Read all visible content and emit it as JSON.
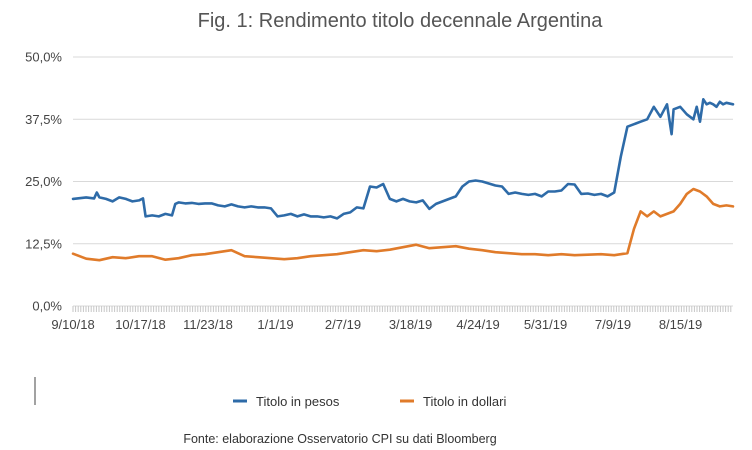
{
  "chart_data": {
    "type": "line",
    "title": "Fig. 1: Rendimento titolo decennale Argentina",
    "xlabel": "",
    "ylabel": "",
    "ylim": [
      0,
      50
    ],
    "y_ticks": [
      "0,0%",
      "12,5%",
      "25,0%",
      "37,5%",
      "50,0%"
    ],
    "y_tick_values": [
      0,
      12.5,
      25,
      37.5,
      50
    ],
    "x_tick_labels": [
      "9/10/18",
      "10/17/18",
      "11/23/18",
      "1/1/19",
      "2/7/19",
      "3/18/19",
      "4/24/19",
      "5/31/19",
      "7/9/19",
      "8/15/19"
    ],
    "x_range": [
      0,
      100
    ],
    "series": [
      {
        "name": "Titolo in pesos",
        "color": "#2e6ba8",
        "x": [
          0,
          2,
          3.2,
          3.6,
          4,
          5,
          6,
          7,
          8,
          9,
          10,
          10.6,
          11,
          12,
          13,
          14,
          15,
          15.5,
          16,
          17,
          18,
          19,
          20,
          21,
          22,
          23,
          24,
          25,
          26,
          27,
          28,
          29,
          30,
          31,
          32,
          33,
          34,
          35,
          36,
          37,
          38,
          39,
          40,
          41,
          42,
          43,
          44,
          45,
          46,
          47,
          48,
          49,
          50,
          51,
          52,
          53,
          54,
          55,
          56,
          57,
          58,
          59,
          60,
          61,
          62,
          63,
          64,
          65,
          66,
          67,
          68,
          69,
          70,
          71,
          72,
          73,
          74,
          75,
          76,
          77,
          78,
          79,
          80,
          81,
          82,
          83,
          84,
          85,
          86,
          87,
          88,
          89,
          90,
          90.7,
          91,
          92,
          93,
          94,
          94.5,
          95,
          95.5,
          96,
          96.5,
          97,
          97.5,
          98,
          98.5,
          99,
          100
        ],
        "values": [
          21.5,
          21.8,
          21.6,
          22.8,
          21.8,
          21.5,
          21.0,
          21.8,
          21.5,
          21.0,
          21.2,
          21.6,
          18.0,
          18.2,
          18.0,
          18.5,
          18.2,
          20.5,
          20.8,
          20.6,
          20.7,
          20.5,
          20.6,
          20.6,
          20.2,
          20.0,
          20.4,
          20.0,
          19.8,
          20.0,
          19.8,
          19.8,
          19.6,
          18.0,
          18.2,
          18.5,
          18.0,
          18.4,
          18.0,
          18.0,
          17.8,
          18.0,
          17.6,
          18.5,
          18.8,
          19.8,
          19.6,
          24.0,
          23.8,
          24.5,
          21.5,
          21.0,
          21.5,
          21.0,
          20.8,
          21.2,
          19.5,
          20.5,
          21.0,
          21.5,
          22.0,
          24.0,
          25.0,
          25.2,
          25.0,
          24.6,
          24.2,
          24.0,
          22.5,
          22.8,
          22.5,
          22.3,
          22.5,
          22.0,
          23.0,
          23.0,
          23.2,
          24.5,
          24.4,
          22.5,
          22.6,
          22.3,
          22.5,
          22.0,
          22.8,
          30.0,
          36.0,
          36.5,
          37.0,
          37.5,
          40.0,
          38.0,
          40.5,
          34.5,
          39.5,
          40.0,
          38.5,
          37.5,
          40.0,
          37.0,
          41.5,
          40.5,
          40.8,
          40.5,
          40.0,
          41.0,
          40.5,
          40.8,
          40.5
        ],
        "values_note": "approximate, read from gridlines"
      },
      {
        "name": "Titolo in dollari",
        "color": "#e07b2a",
        "x": [
          0,
          2,
          4,
          6,
          8,
          10,
          12,
          14,
          16,
          18,
          20,
          22,
          24,
          26,
          28,
          30,
          32,
          34,
          36,
          38,
          40,
          42,
          44,
          46,
          48,
          50,
          52,
          54,
          56,
          58,
          60,
          62,
          64,
          66,
          68,
          70,
          72,
          74,
          76,
          78,
          80,
          82,
          84,
          85,
          86,
          87,
          88,
          89,
          90,
          91,
          92,
          93,
          94,
          95,
          96,
          97,
          98,
          99,
          100
        ],
        "values": [
          10.5,
          9.5,
          9.2,
          9.8,
          9.6,
          10.0,
          10.0,
          9.3,
          9.6,
          10.2,
          10.4,
          10.8,
          11.2,
          10.0,
          9.8,
          9.6,
          9.4,
          9.6,
          10.0,
          10.2,
          10.4,
          10.8,
          11.2,
          11.0,
          11.3,
          11.8,
          12.3,
          11.6,
          11.8,
          12.0,
          11.5,
          11.2,
          10.8,
          10.6,
          10.4,
          10.4,
          10.2,
          10.4,
          10.2,
          10.3,
          10.4,
          10.2,
          10.6,
          15.5,
          19.0,
          18.0,
          19.0,
          18.0,
          18.5,
          19.0,
          20.5,
          22.5,
          23.5,
          23.0,
          22.0,
          20.5,
          20.0,
          20.2,
          20.0
        ],
        "values_note": "approximate, read from gridlines"
      }
    ],
    "legend_position": "bottom-center",
    "grid": true,
    "source": "Fonte: elaborazione Osservatorio CPI su dati Bloomberg"
  }
}
